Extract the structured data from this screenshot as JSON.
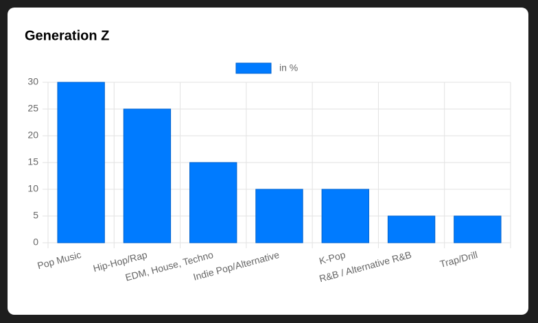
{
  "chart_data": {
    "type": "bar",
    "title": "Generation Z",
    "categories": [
      "Pop Music",
      "Hip-Hop/Rap",
      "EDM, House, Techno",
      "Indie Pop/Alternative",
      "K-Pop",
      "R&B / Alternative R&B",
      "Trap/Drill"
    ],
    "series": [
      {
        "name": "in %",
        "color": "#007bff",
        "values": [
          30,
          25,
          15,
          10,
          10,
          5,
          5
        ]
      }
    ],
    "ylim": [
      0,
      30
    ],
    "yticks": [
      0,
      5,
      10,
      15,
      20,
      25,
      30
    ],
    "grid": true,
    "legend": "top"
  }
}
